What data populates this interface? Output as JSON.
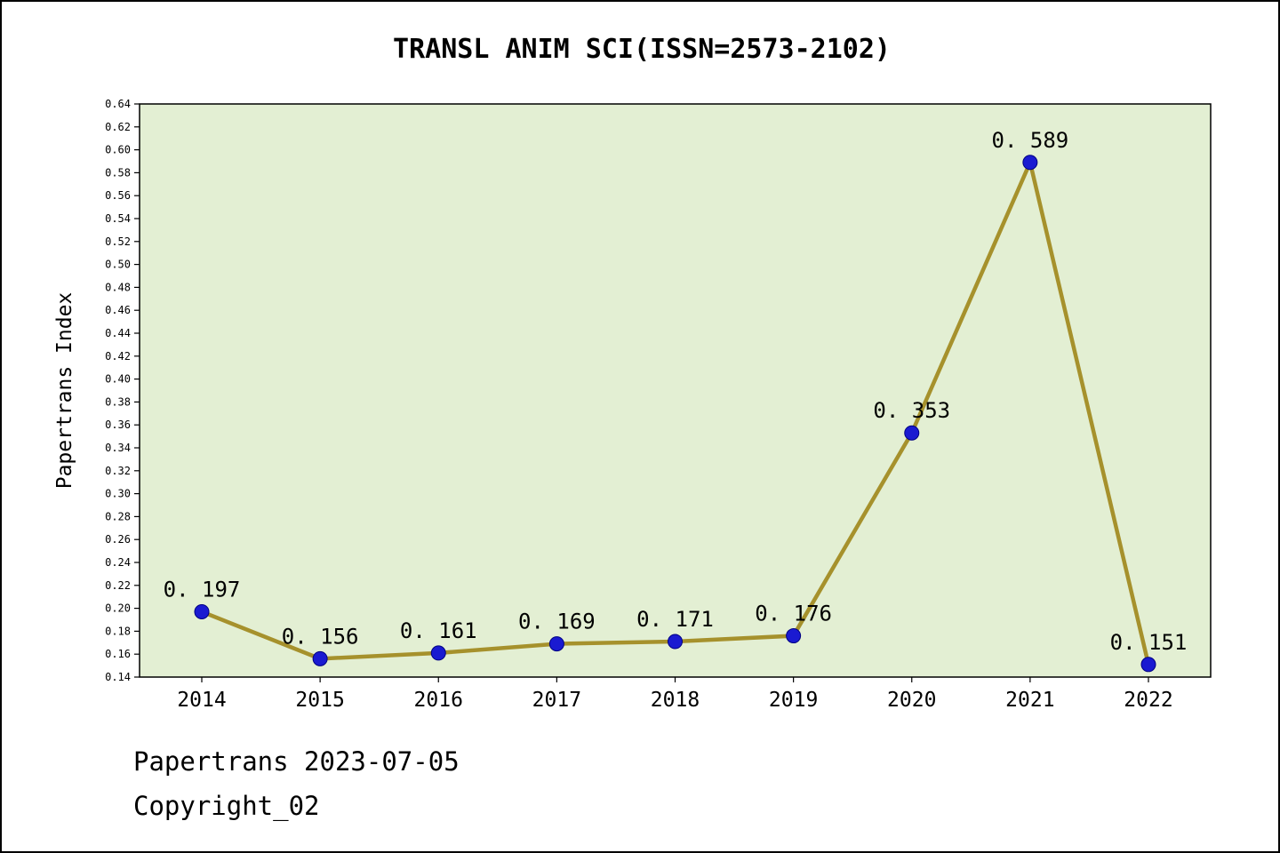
{
  "page": {
    "title": "TRANSL ANIM SCI(ISSN=2573-2102)",
    "footer_line1": "Papertrans 2023-07-05",
    "footer_line2": "Copyright_02"
  },
  "chart_data": {
    "type": "line",
    "title": "TRANSL ANIM SCI(ISSN=2573-2102)",
    "xlabel": "",
    "ylabel": "Papertrans Index",
    "categories": [
      "2014",
      "2015",
      "2016",
      "2017",
      "2018",
      "2019",
      "2020",
      "2021",
      "2022"
    ],
    "series": [
      {
        "name": "Papertrans Index",
        "values": [
          0.197,
          0.156,
          0.161,
          0.169,
          0.171,
          0.176,
          0.353,
          0.589,
          0.151
        ]
      }
    ],
    "point_labels": [
      "0. 197",
      "0. 156",
      "0. 161",
      "0. 169",
      "0. 171",
      "0. 176",
      "0. 353",
      "0. 589",
      "0. 151"
    ],
    "ylim": [
      0.14,
      0.64
    ],
    "ytick_step": 0.02,
    "grid": false,
    "legend_position": "none",
    "colors": {
      "line": "#a6912c",
      "marker_fill": "#1a1ad1",
      "marker_edge": "#000082",
      "plot_background": "#e3efd3",
      "axis": "#000000",
      "text": "#000000"
    }
  }
}
